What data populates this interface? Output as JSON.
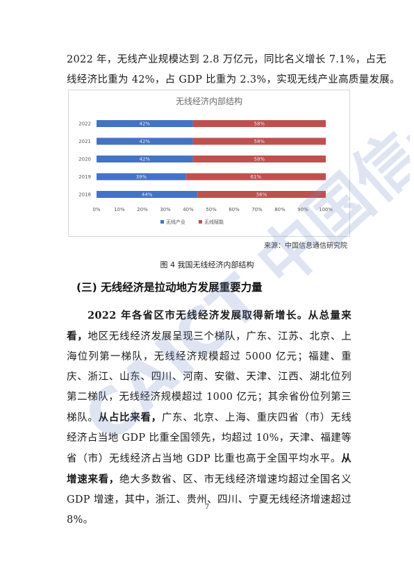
{
  "intro": {
    "line1": "2022 年，无线产业规模达到 2.8 万亿元，同比名义增长 7.1%，占无",
    "line2": "线经济比重为 42%，占 GDP 比重为 2.3%，实现无线产业高质量发展。"
  },
  "chart_data": {
    "type": "bar",
    "orientation": "horizontal",
    "stacked": true,
    "title": "无线经济内部结构",
    "categories": [
      "2022",
      "2021",
      "2020",
      "2019",
      "2018"
    ],
    "series": [
      {
        "name": "无线产业",
        "values": [
          42,
          42,
          42,
          39,
          44
        ],
        "labels": [
          "42%",
          "42%",
          "42%",
          "39%",
          "44%"
        ],
        "color": "#4472c4"
      },
      {
        "name": "无线赋能",
        "values": [
          58,
          58,
          58,
          61,
          56
        ],
        "labels": [
          "58%",
          "58%",
          "58%",
          "61%",
          "56%"
        ],
        "color": "#c0504d"
      }
    ],
    "xlim": [
      0,
      100
    ],
    "xticks": [
      "0%",
      "10%",
      "20%",
      "30%",
      "40%",
      "50%",
      "60%",
      "70%",
      "80%",
      "90%",
      "100%"
    ],
    "legend_position": "bottom",
    "grid": false
  },
  "source": "来源：中国信息通信研究院",
  "caption": "图 4   我国无线经济内部结构",
  "section": {
    "heading": "(三) 无线经济是拉动地方发展重要力量",
    "lead_bold": "2022 年各省区市无线经济发展取得新增长。",
    "s1_bold": "从总量来看，",
    "s1_text": "地区无线经济发展呈现三个梯队，广东、江苏、北京、上海位列第一梯队，无线经济规模超过 5000 亿元；福建、重庆、浙江、山东、四川、河南、安徽、天津、江西、湖北位列第二梯队，无线经济规模超过 1000 亿元；其余省份位列第三梯队。",
    "s2_bold": "从占比来看，",
    "s2_text": "广东、北京、上海、重庆四省（市）无线经济占当地 GDP 比重全国领先，均超过 10%，天津、福建等省（市）无线经济占当地 GDP 比重也高于全国平均水平。",
    "s3_bold": "从增速来看，",
    "s3_text": "绝大多数省、区、市无线经济增速均超过全国名义 GDP 增速，其中，浙江、贵州、四川、宁夏无线经济增速超过 8%。"
  },
  "page_number": "7",
  "watermark": {
    "text": "CAICT 中国信通院",
    "color": "#6f86c9"
  }
}
